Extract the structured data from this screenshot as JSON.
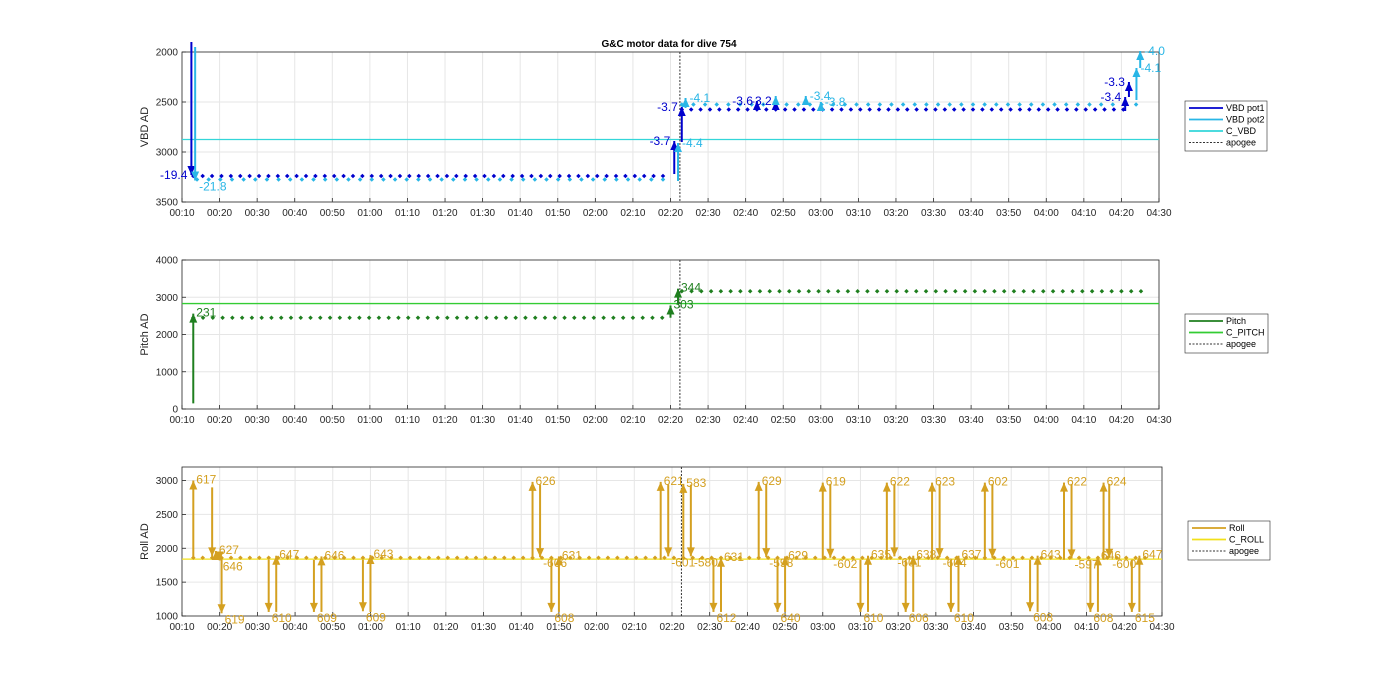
{
  "figure_title": "G&C motor data for dive 754",
  "chart_data": [
    {
      "type": "scatter",
      "panel": "vbd",
      "ylabel": "VBD AD",
      "xlim": [
        10,
        270
      ],
      "ylim": [
        2000,
        3500
      ],
      "y_reversed": true,
      "yticks": [
        2000,
        2500,
        3000,
        3500
      ],
      "xticks": [
        "00:10",
        "00:20",
        "00:30",
        "00:40",
        "00:50",
        "01:00",
        "01:10",
        "01:20",
        "01:30",
        "01:40",
        "01:50",
        "02:00",
        "02:10",
        "02:20",
        "02:30",
        "02:40",
        "02:50",
        "03:00",
        "03:10",
        "03:20",
        "03:30",
        "03:40",
        "03:50",
        "04:00",
        "04:10",
        "04:20",
        "04:30"
      ],
      "grid": true,
      "apogee_x": 142.5,
      "legend": [
        "VBD pot1",
        "VBD pot2",
        "C_VBD",
        "apogee"
      ],
      "legend_position": "outside-right",
      "colors": {
        "pot1": "#0000cd",
        "pot2": "#29b6e6",
        "c": "#33d6d9",
        "apogee": "#333333"
      },
      "c_value": 2875,
      "series": [
        {
          "name": "VBD pot1",
          "x_range": [
            13,
            140
          ],
          "y": 3240
        },
        {
          "name": "VBD pot2",
          "x_range": [
            14,
            141
          ],
          "y": 3275
        },
        {
          "name": "VBD pot1",
          "x_range": [
            143,
            262
          ],
          "y": 2575
        },
        {
          "name": "VBD pot2",
          "x_range": [
            143,
            266
          ],
          "y": 2525
        }
      ],
      "arrows": [
        {
          "series": "pot1",
          "x": 12.5,
          "y0": 1900,
          "y1": 3230,
          "label": "-19.4",
          "side": "left"
        },
        {
          "series": "pot2",
          "x": 13.5,
          "y0": 1950,
          "y1": 3285,
          "label": "-21.8",
          "side": "right"
        },
        {
          "series": "pot1",
          "x": 141,
          "y0": 3220,
          "y1": 2890,
          "label": "-3.7",
          "side": "left"
        },
        {
          "series": "pot2",
          "x": 142,
          "y0": 3290,
          "y1": 2910,
          "label": "-4.4",
          "side": "right"
        },
        {
          "series": "pot1",
          "x": 143,
          "y0": 2900,
          "y1": 2550,
          "label": "-3.7",
          "side": "left"
        },
        {
          "series": "pot2",
          "x": 144,
          "y0": 2560,
          "y1": 2460,
          "label": "-4.1",
          "side": "right"
        },
        {
          "series": "pot1",
          "x": 163,
          "y0": 2520,
          "y1": 2490,
          "label": "-3.6",
          "side": "left"
        },
        {
          "series": "pot1",
          "x": 168,
          "y0": 2520,
          "y1": 2490,
          "label": "-3.2",
          "side": "left"
        },
        {
          "series": "pot2",
          "x": 168,
          "y0": 2470,
          "y1": 2440,
          "label": "",
          "side": "right"
        },
        {
          "series": "pot2",
          "x": 176,
          "y0": 2500,
          "y1": 2440,
          "label": "-3.4",
          "side": "right"
        },
        {
          "series": "pot2",
          "x": 180,
          "y0": 2520,
          "y1": 2500,
          "label": "-3.8",
          "side": "right"
        },
        {
          "series": "pot1",
          "x": 261,
          "y0": 2590,
          "y1": 2450,
          "label": "-3.4",
          "side": "left"
        },
        {
          "series": "pot1",
          "x": 262,
          "y0": 2450,
          "y1": 2300,
          "label": "-3.3",
          "side": "left"
        },
        {
          "series": "pot2",
          "x": 264,
          "y0": 2480,
          "y1": 2160,
          "label": "-4.1",
          "side": "right"
        },
        {
          "series": "pot2",
          "x": 265,
          "y0": 2160,
          "y1": 1990,
          "label": "-4.0",
          "side": "right"
        }
      ]
    },
    {
      "type": "scatter",
      "panel": "pitch",
      "ylabel": "Pitch AD",
      "xlim": [
        10,
        270
      ],
      "ylim": [
        0,
        4000
      ],
      "yticks": [
        0,
        1000,
        2000,
        3000,
        4000
      ],
      "xticks": [
        "00:10",
        "00:20",
        "00:30",
        "00:40",
        "00:50",
        "01:00",
        "01:10",
        "01:20",
        "01:30",
        "01:40",
        "01:50",
        "02:00",
        "02:10",
        "02:20",
        "02:30",
        "02:40",
        "02:50",
        "03:00",
        "03:10",
        "03:20",
        "03:30",
        "03:40",
        "03:50",
        "04:00",
        "04:10",
        "04:20",
        "04:30"
      ],
      "grid": true,
      "apogee_x": 142.5,
      "legend": [
        "Pitch",
        "C_PITCH",
        "apogee"
      ],
      "legend_position": "outside-right",
      "colors": {
        "pitch": "#1f7f1f",
        "c": "#33cc33",
        "apogee": "#333333"
      },
      "c_value": 2830,
      "series": [
        {
          "name": "Pitch",
          "x_range": [
            13,
            139
          ],
          "y": 2450
        },
        {
          "name": "Pitch",
          "x_range": [
            143,
            266
          ],
          "y": 3160
        }
      ],
      "arrows": [
        {
          "x": 13,
          "y0": 150,
          "y1": 2560,
          "label": "231"
        },
        {
          "x": 140,
          "y0": 2450,
          "y1": 2780,
          "label": "303"
        },
        {
          "x": 142,
          "y0": 2800,
          "y1": 3230,
          "label": "344"
        }
      ]
    },
    {
      "type": "scatter",
      "panel": "roll",
      "ylabel": "Roll AD",
      "xlim": [
        10,
        270
      ],
      "ylim": [
        1000,
        3200
      ],
      "yticks": [
        1000,
        1500,
        2000,
        2500,
        3000
      ],
      "xticks": [
        "00:10",
        "00:20",
        "00:30",
        "00:40",
        "00:50",
        "01:00",
        "01:10",
        "01:20",
        "01:30",
        "01:40",
        "01:50",
        "02:00",
        "02:10",
        "02:20",
        "02:30",
        "02:40",
        "02:50",
        "03:00",
        "03:10",
        "03:20",
        "03:30",
        "03:40",
        "03:50",
        "04:00",
        "04:10",
        "04:20",
        "04:30"
      ],
      "grid": true,
      "apogee_x": 142.5,
      "legend": [
        "Roll",
        "C_ROLL",
        "apogee"
      ],
      "legend_position": "outside-right",
      "colors": {
        "roll": "#d4a020",
        "c": "#f2e01a",
        "apogee": "#333333"
      },
      "c_value": 1840,
      "dots": {
        "x_range": [
          13,
          266
        ],
        "y": 1860
      },
      "arrows": [
        {
          "x": 13,
          "y0": 1850,
          "y1": 3000,
          "label": "617"
        },
        {
          "x": 18,
          "y0": 2900,
          "y1": 1880,
          "label": ""
        },
        {
          "x": 19,
          "y0": 1850,
          "y1": 1960,
          "label": "627"
        },
        {
          "x": 20,
          "y0": 1950,
          "y1": 1820,
          "label": "646"
        },
        {
          "x": 20.5,
          "y0": 1850,
          "y1": 1040,
          "label": "619"
        },
        {
          "x": 33,
          "y0": 1830,
          "y1": 1060,
          "label": "610"
        },
        {
          "x": 35,
          "y0": 1060,
          "y1": 1890,
          "label": "647"
        },
        {
          "x": 45,
          "y0": 1830,
          "y1": 1060,
          "label": "609"
        },
        {
          "x": 47,
          "y0": 1060,
          "y1": 1880,
          "label": "646"
        },
        {
          "x": 58,
          "y0": 1830,
          "y1": 1070,
          "label": "609"
        },
        {
          "x": 60,
          "y0": 1060,
          "y1": 1900,
          "label": "643"
        },
        {
          "x": 103,
          "y0": 1830,
          "y1": 2980,
          "label": "626"
        },
        {
          "x": 105,
          "y0": 2940,
          "y1": 1870,
          "label": "-606"
        },
        {
          "x": 108,
          "y0": 1830,
          "y1": 1060,
          "label": "608"
        },
        {
          "x": 110,
          "y0": 1060,
          "y1": 1880,
          "label": "631"
        },
        {
          "x": 137,
          "y0": 1830,
          "y1": 2980,
          "label": "621"
        },
        {
          "x": 139,
          "y0": 2940,
          "y1": 1880,
          "label": "-601"
        },
        {
          "x": 143,
          "y0": 1830,
          "y1": 2950,
          "label": "583"
        },
        {
          "x": 145,
          "y0": 2940,
          "y1": 1880,
          "label": "-580"
        },
        {
          "x": 151,
          "y0": 1830,
          "y1": 1060,
          "label": "612"
        },
        {
          "x": 153,
          "y0": 1060,
          "y1": 1860,
          "label": "631"
        },
        {
          "x": 163,
          "y0": 1830,
          "y1": 2980,
          "label": "629"
        },
        {
          "x": 165,
          "y0": 2950,
          "y1": 1870,
          "label": "-598"
        },
        {
          "x": 168,
          "y0": 1830,
          "y1": 1060,
          "label": "640"
        },
        {
          "x": 170,
          "y0": 1060,
          "y1": 1880,
          "label": "629"
        },
        {
          "x": 180,
          "y0": 1830,
          "y1": 2970,
          "label": "619"
        },
        {
          "x": 182,
          "y0": 2950,
          "y1": 1860,
          "label": "-602"
        },
        {
          "x": 190,
          "y0": 1830,
          "y1": 1060,
          "label": "610"
        },
        {
          "x": 192,
          "y0": 1060,
          "y1": 1890,
          "label": "635"
        },
        {
          "x": 197,
          "y0": 1830,
          "y1": 2970,
          "label": "622"
        },
        {
          "x": 199,
          "y0": 2950,
          "y1": 1880,
          "label": "-601"
        },
        {
          "x": 202,
          "y0": 1830,
          "y1": 1060,
          "label": "606"
        },
        {
          "x": 204,
          "y0": 1060,
          "y1": 1890,
          "label": "638"
        },
        {
          "x": 209,
          "y0": 1830,
          "y1": 2970,
          "label": "623"
        },
        {
          "x": 211,
          "y0": 2950,
          "y1": 1870,
          "label": "-604"
        },
        {
          "x": 214,
          "y0": 1830,
          "y1": 1060,
          "label": "610"
        },
        {
          "x": 216,
          "y0": 1060,
          "y1": 1890,
          "label": "637"
        },
        {
          "x": 223,
          "y0": 1830,
          "y1": 2970,
          "label": "602"
        },
        {
          "x": 225,
          "y0": 2950,
          "y1": 1860,
          "label": "-601"
        },
        {
          "x": 235,
          "y0": 1830,
          "y1": 1070,
          "label": "608"
        },
        {
          "x": 237,
          "y0": 1060,
          "y1": 1890,
          "label": "643"
        },
        {
          "x": 244,
          "y0": 1830,
          "y1": 2970,
          "label": "622"
        },
        {
          "x": 246,
          "y0": 2950,
          "y1": 1850,
          "label": "-597"
        },
        {
          "x": 251,
          "y0": 1830,
          "y1": 1060,
          "label": "608"
        },
        {
          "x": 253,
          "y0": 1060,
          "y1": 1880,
          "label": "646"
        },
        {
          "x": 254.5,
          "y0": 1830,
          "y1": 2970,
          "label": "624"
        },
        {
          "x": 256,
          "y0": 2950,
          "y1": 1860,
          "label": "-600"
        },
        {
          "x": 262,
          "y0": 1830,
          "y1": 1060,
          "label": "615"
        },
        {
          "x": 264,
          "y0": 1060,
          "y1": 1890,
          "label": "647"
        }
      ]
    }
  ]
}
